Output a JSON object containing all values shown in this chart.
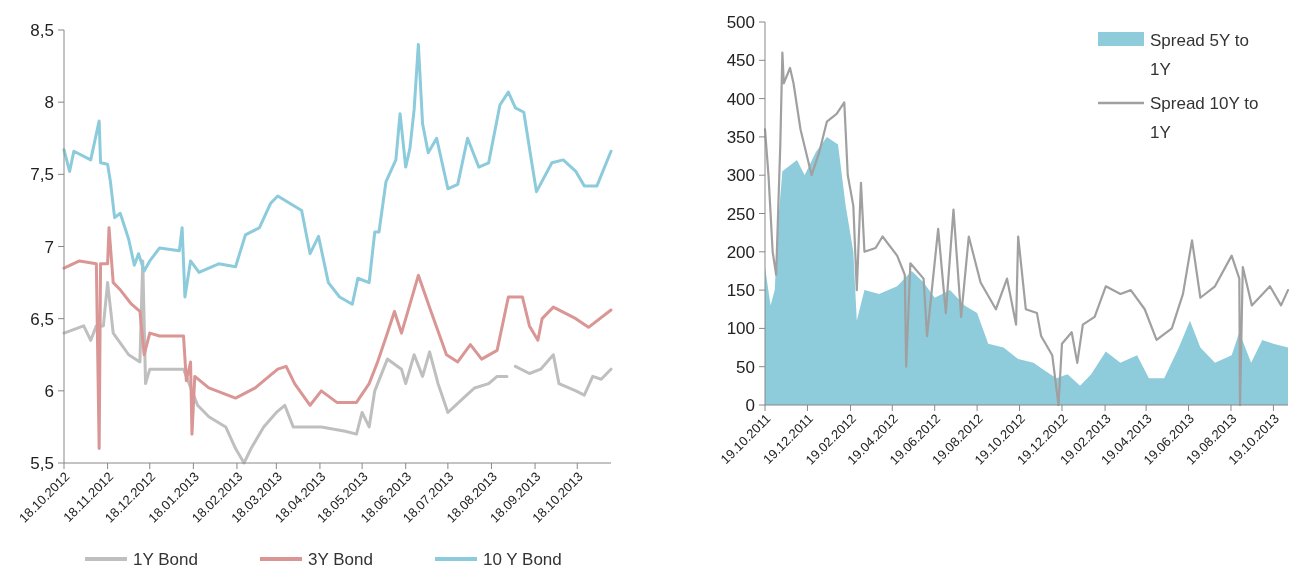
{
  "chart_data": [
    {
      "type": "line",
      "xlim": [
        "2012-10-18",
        "2013-11-11"
      ],
      "ylim": [
        5.5,
        8.5
      ],
      "xticks": [
        {
          "value": "2012-10-18",
          "label": "18.10.2012"
        },
        {
          "value": "2012-11-18",
          "label": "18.11.2012"
        },
        {
          "value": "2012-12-18",
          "label": "18.12.2012"
        },
        {
          "value": "2013-01-18",
          "label": "18.01.2013"
        },
        {
          "value": "2013-02-18",
          "label": "18.02.2013"
        },
        {
          "value": "2013-03-18",
          "label": "18.03.2013"
        },
        {
          "value": "2013-04-18",
          "label": "18.04.2013"
        },
        {
          "value": "2013-05-18",
          "label": "18.05.2013"
        },
        {
          "value": "2013-06-18",
          "label": "18.06.2013"
        },
        {
          "value": "2013-07-18",
          "label": "18.07.2013"
        },
        {
          "value": "2013-08-18",
          "label": "18.08.2013"
        },
        {
          "value": "2013-09-18",
          "label": "18.09.2013"
        },
        {
          "value": "2013-10-18",
          "label": "18.10.2013"
        }
      ],
      "yticks": [
        {
          "value": 5.5,
          "label": "5,5"
        },
        6,
        {
          "value": 6.5,
          "label": "6,5"
        },
        7,
        {
          "value": 7.5,
          "label": "7,5"
        },
        8,
        {
          "value": 8.5,
          "label": "8,5"
        }
      ],
      "grid": false,
      "legend": "bottom",
      "line_style": "solid",
      "marker": "none",
      "series": [
        {
          "name": "1Y Bond",
          "color": "#bfbfbf",
          "x": [
            "2012-10-18",
            "2012-11-01",
            "2012-11-06",
            "2012-11-10",
            "2012-11-15",
            "2012-11-18",
            "2012-11-22",
            "2012-12-03",
            "2012-12-11",
            "2012-12-13",
            "2012-12-15",
            "2012-12-18",
            "2012-12-25",
            "2013-01-11",
            "2013-01-15",
            "2013-01-21",
            "2013-01-29",
            "2013-02-10",
            "2013-02-17",
            "2013-02-23",
            "2013-02-28",
            "2013-03-09",
            "2013-03-18",
            "2013-03-24",
            "2013-03-30",
            "2013-04-19",
            "2013-05-06",
            "2013-05-14",
            "2013-05-18",
            "2013-05-23",
            "2013-05-27",
            "2013-06-05",
            "2013-06-15",
            "2013-06-18",
            "2013-06-24",
            "2013-06-30",
            "2013-07-05",
            "2013-07-11",
            "2013-07-18",
            "2013-07-29",
            "2013-08-06",
            "2013-08-16",
            "2013-08-22",
            "2013-08-29",
            "2013-09-01",
            "2013-09-04",
            "2013-09-14",
            "2013-09-22",
            "2013-10-01",
            "2013-10-05",
            "2013-10-17",
            "2013-10-23",
            "2013-10-29",
            "2013-11-04",
            "2013-11-11"
          ],
          "values": [
            6.4,
            6.45,
            6.35,
            6.45,
            6.45,
            6.75,
            6.4,
            6.25,
            6.2,
            6.9,
            6.05,
            6.15,
            6.15,
            6.15,
            6.05,
            5.9,
            5.82,
            5.75,
            5.6,
            5.5,
            5.6,
            5.75,
            5.85,
            5.9,
            5.75,
            5.75,
            5.72,
            5.7,
            5.85,
            5.75,
            6.0,
            6.22,
            6.15,
            6.05,
            6.25,
            6.1,
            6.27,
            6.05,
            5.85,
            5.95,
            6.02,
            6.05,
            6.1,
            6.1,
            null,
            6.17,
            6.12,
            6.15,
            6.25,
            6.05,
            6.0,
            5.97,
            6.1,
            6.08,
            6.15
          ]
        },
        {
          "name": "3Y Bond",
          "color": "#d99694",
          "x": [
            "2012-10-18",
            "2012-10-29",
            "2012-11-10",
            "2012-11-12",
            "2012-11-13",
            "2012-11-18",
            "2012-11-19",
            "2012-11-22",
            "2012-11-27",
            "2012-12-05",
            "2012-12-11",
            "2012-12-14",
            "2012-12-18",
            "2012-12-25",
            "2013-01-11",
            "2013-01-13",
            "2013-01-16",
            "2013-01-17",
            "2013-01-19",
            "2013-01-29",
            "2013-02-17",
            "2013-03-03",
            "2013-03-19",
            "2013-03-25",
            "2013-03-31",
            "2013-04-11",
            "2013-04-19",
            "2013-04-30",
            "2013-05-14",
            "2013-05-23",
            "2013-05-29",
            "2013-06-05",
            "2013-06-10",
            "2013-06-15",
            "2013-06-27",
            "2013-07-06",
            "2013-07-17",
            "2013-07-25",
            "2013-08-03",
            "2013-08-11",
            "2013-08-22",
            "2013-08-30",
            "2013-09-09",
            "2013-09-14",
            "2013-09-20",
            "2013-09-23",
            "2013-10-01",
            "2013-10-17",
            "2013-10-26",
            "2013-11-11"
          ],
          "values": [
            6.85,
            6.9,
            6.88,
            5.6,
            6.88,
            6.88,
            7.13,
            6.75,
            6.7,
            6.6,
            6.55,
            6.25,
            6.4,
            6.38,
            6.38,
            6.07,
            6.2,
            5.7,
            6.1,
            6.02,
            5.95,
            6.02,
            6.15,
            6.17,
            6.05,
            5.9,
            6.0,
            5.92,
            5.92,
            6.05,
            6.2,
            6.4,
            6.55,
            6.4,
            6.8,
            6.55,
            6.25,
            6.2,
            6.32,
            6.22,
            6.28,
            6.65,
            6.65,
            6.45,
            6.35,
            6.5,
            6.58,
            6.5,
            6.44,
            6.56
          ]
        },
        {
          "name": "10 Y Bond",
          "color": "#8ccbdc",
          "x": [
            "2012-10-18",
            "2012-10-22",
            "2012-10-25",
            "2012-11-06",
            "2012-11-12",
            "2012-11-13",
            "2012-11-18",
            "2012-11-20",
            "2012-11-23",
            "2012-11-27",
            "2012-12-03",
            "2012-12-07",
            "2012-12-10",
            "2012-12-14",
            "2012-12-18",
            "2012-12-25",
            "2013-01-08",
            "2013-01-10",
            "2013-01-12",
            "2013-01-16",
            "2013-01-22",
            "2013-02-05",
            "2013-02-17",
            "2013-02-24",
            "2013-03-06",
            "2013-03-14",
            "2013-03-19",
            "2013-04-05",
            "2013-04-11",
            "2013-04-17",
            "2013-04-24",
            "2013-05-02",
            "2013-05-11",
            "2013-05-15",
            "2013-05-23",
            "2013-05-27",
            "2013-05-30",
            "2013-06-04",
            "2013-06-11",
            "2013-06-14",
            "2013-06-18",
            "2013-06-21",
            "2013-06-24",
            "2013-06-27",
            "2013-06-30",
            "2013-07-04",
            "2013-07-10",
            "2013-07-18",
            "2013-07-25",
            "2013-08-01",
            "2013-08-05",
            "2013-08-09",
            "2013-08-16",
            "2013-08-24",
            "2013-08-30",
            "2013-09-04",
            "2013-09-10",
            "2013-09-15",
            "2013-09-19",
            "2013-09-30",
            "2013-10-08",
            "2013-10-17",
            "2013-10-23",
            "2013-11-01",
            "2013-11-11"
          ],
          "values": [
            7.67,
            7.52,
            7.66,
            7.6,
            7.87,
            7.58,
            7.57,
            7.45,
            7.2,
            7.23,
            7.05,
            6.87,
            6.95,
            6.83,
            6.9,
            6.99,
            6.97,
            7.13,
            6.65,
            6.9,
            6.82,
            6.88,
            6.86,
            7.08,
            7.13,
            7.3,
            7.35,
            7.25,
            6.95,
            7.07,
            6.75,
            6.65,
            6.6,
            6.78,
            6.75,
            7.1,
            7.1,
            7.45,
            7.6,
            7.92,
            7.55,
            7.68,
            7.95,
            8.4,
            7.85,
            7.65,
            7.75,
            7.4,
            7.43,
            7.75,
            7.65,
            7.55,
            7.58,
            7.98,
            8.07,
            7.96,
            7.93,
            7.62,
            7.38,
            7.58,
            7.6,
            7.52,
            7.42,
            7.42,
            7.66
          ]
        }
      ]
    },
    {
      "type": "line",
      "xlim": [
        "2011-10-19",
        "2013-11-09"
      ],
      "ylim": [
        0,
        500
      ],
      "xticks": [
        {
          "value": "2011-10-19",
          "label": "19.10.2011"
        },
        {
          "value": "2011-12-19",
          "label": "19.12.2011"
        },
        {
          "value": "2012-02-19",
          "label": "19.02.2012"
        },
        {
          "value": "2012-04-19",
          "label": "19.04.2012"
        },
        {
          "value": "2012-06-19",
          "label": "19.06.2012"
        },
        {
          "value": "2012-08-19",
          "label": "19.08.2012"
        },
        {
          "value": "2012-10-19",
          "label": "19.10.2012"
        },
        {
          "value": "2012-12-19",
          "label": "19.12.2012"
        },
        {
          "value": "2013-02-19",
          "label": "19.02.2013"
        },
        {
          "value": "2013-04-19",
          "label": "19.04.2013"
        },
        {
          "value": "2013-06-19",
          "label": "19.06.2013"
        },
        {
          "value": "2013-08-19",
          "label": "19.08.2013"
        },
        {
          "value": "2013-10-19",
          "label": "19.10.2013"
        }
      ],
      "yticks": [
        0,
        50,
        100,
        150,
        200,
        250,
        300,
        350,
        400,
        450,
        500
      ],
      "grid": false,
      "legend": "top right",
      "line_style": "solid",
      "marker": "none",
      "series": [
        {
          "name": "Spread 5Y to 1Y",
          "type": "area",
          "color": "#8ecbdb",
          "x": [
            "2011-10-19",
            "2011-10-27",
            "2011-11-02",
            "2011-11-07",
            "2011-11-13",
            "2011-12-04",
            "2011-12-15",
            "2011-12-31",
            "2012-01-16",
            "2012-02-01",
            "2012-02-12",
            "2012-02-23",
            "2012-02-28",
            "2012-03-10",
            "2012-03-31",
            "2012-04-26",
            "2012-05-17",
            "2012-06-03",
            "2012-06-19",
            "2012-07-11",
            "2012-08-01",
            "2012-08-19",
            "2012-09-04",
            "2012-09-26",
            "2012-10-17",
            "2012-11-08",
            "2012-11-24",
            "2012-12-11",
            "2012-12-27",
            "2013-01-14",
            "2013-01-30",
            "2013-02-20",
            "2013-03-13",
            "2013-04-06",
            "2013-04-23",
            "2013-05-15",
            "2013-06-05",
            "2013-06-21",
            "2013-07-06",
            "2013-07-27",
            "2013-08-20",
            "2013-08-31",
            "2013-09-17",
            "2013-10-03",
            "2013-10-19",
            "2013-11-09"
          ],
          "values": [
            180,
            130,
            150,
            240,
            305,
            320,
            300,
            330,
            350,
            340,
            260,
            200,
            110,
            150,
            145,
            155,
            175,
            160,
            140,
            150,
            130,
            120,
            80,
            75,
            60,
            55,
            45,
            35,
            40,
            25,
            40,
            70,
            55,
            65,
            35,
            35,
            75,
            110,
            75,
            55,
            65,
            95,
            55,
            85,
            80,
            75
          ]
        },
        {
          "name": "Spread 10Y to 1Y",
          "color": "#a0a0a0",
          "x": [
            "2011-10-19",
            "2011-10-24",
            "2011-10-30",
            "2011-11-04",
            "2011-11-10",
            "2011-11-13",
            "2011-11-15",
            "2011-11-24",
            "2011-11-29",
            "2011-12-09",
            "2011-12-17",
            "2011-12-25",
            "2012-01-05",
            "2012-01-16",
            "2012-01-30",
            "2012-02-10",
            "2012-02-15",
            "2012-02-23",
            "2012-02-28",
            "2012-03-05",
            "2012-03-10",
            "2012-03-26",
            "2012-04-05",
            "2012-04-26",
            "2012-05-07",
            "2012-05-09",
            "2012-05-15",
            "2012-06-03",
            "2012-06-08",
            "2012-06-24",
            "2012-07-05",
            "2012-07-16",
            "2012-07-27",
            "2012-08-07",
            "2012-08-24",
            "2012-09-15",
            "2012-10-01",
            "2012-10-14",
            "2012-10-17",
            "2012-10-28",
            "2012-11-13",
            "2012-11-19",
            "2012-12-05",
            "2012-12-14",
            "2012-12-19",
            "2013-01-02",
            "2013-01-10",
            "2013-01-18",
            "2013-02-04",
            "2013-02-20",
            "2013-03-13",
            "2013-03-28",
            "2013-04-17",
            "2013-05-04",
            "2013-05-26",
            "2013-06-11",
            "2013-06-24",
            "2013-07-06",
            "2013-07-27",
            "2013-08-20",
            "2013-08-31",
            "2013-09-01",
            "2013-09-05",
            "2013-09-18",
            "2013-10-14",
            "2013-10-30",
            "2013-11-09"
          ],
          "values": [
            360,
            300,
            200,
            170,
            340,
            460,
            420,
            440,
            420,
            360,
            330,
            300,
            330,
            370,
            380,
            395,
            300,
            260,
            150,
            290,
            200,
            205,
            220,
            195,
            170,
            50,
            185,
            165,
            90,
            230,
            120,
            255,
            115,
            220,
            160,
            125,
            165,
            105,
            220,
            125,
            120,
            90,
            65,
            0,
            80,
            95,
            55,
            105,
            115,
            155,
            145,
            150,
            125,
            85,
            100,
            145,
            215,
            140,
            155,
            195,
            165,
            0,
            180,
            130,
            155,
            130,
            150
          ]
        }
      ]
    }
  ]
}
